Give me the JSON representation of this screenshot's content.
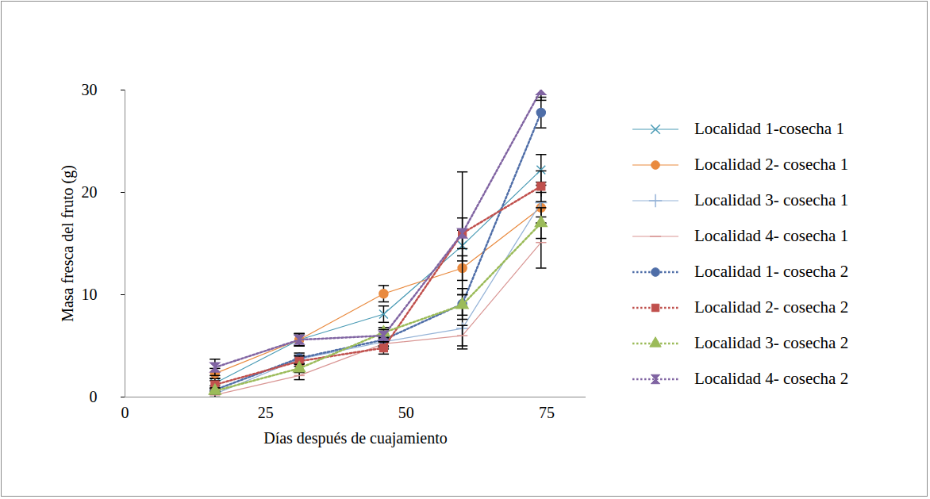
{
  "chart_data": {
    "type": "line",
    "x_label": "Días después de cuajamiento",
    "y_label": "Masa fresca del fruto (g)",
    "x": [
      16,
      31,
      46,
      60,
      74
    ],
    "xlim": [
      0,
      82
    ],
    "xticks": [
      0,
      25,
      50,
      75
    ],
    "ylim": [
      0,
      30
    ],
    "yticks": [
      0,
      10,
      20,
      30
    ],
    "grid": false,
    "legend": "right",
    "series": [
      {
        "name": "Localidad 1-cosecha 1",
        "color": "#4a9bb5",
        "marker": "times",
        "line_style": "solid",
        "values": [
          1.35,
          5.6,
          8.1,
          14.8,
          22.2
        ],
        "errors": [
          0.5,
          0.6,
          0.8,
          1.5,
          1.5
        ]
      },
      {
        "name": "Localidad 2- cosecha 1",
        "color": "#e98a3f",
        "marker": "circle",
        "line_style": "solid",
        "values": [
          2.3,
          5.6,
          10.1,
          12.6,
          18.5
        ],
        "errors": [
          0.5,
          0.6,
          0.8,
          1.2,
          1.5
        ]
      },
      {
        "name": "Localidad 3- cosecha 1",
        "color": "#95b3d7",
        "marker": "plus",
        "line_style": "solid",
        "values": [
          0.3,
          3.7,
          5.4,
          6.7,
          19.0
        ],
        "errors": [
          0.3,
          0.4,
          0.5,
          2.0,
          2.0
        ]
      },
      {
        "name": "Localidad 4- cosecha 1",
        "color": "#d99694",
        "marker": "dash",
        "line_style": "solid",
        "values": [
          0.2,
          2.1,
          5.2,
          6.0,
          15.1
        ],
        "errors": [
          0.3,
          0.4,
          0.5,
          1.0,
          2.5
        ]
      },
      {
        "name": "Localidad 1- cosecha 2",
        "color": "#4f6ea8",
        "marker": "circle",
        "line_style": "dotted",
        "values": [
          0.7,
          3.8,
          5.6,
          9.1,
          27.8
        ],
        "errors": [
          0.4,
          0.5,
          0.6,
          1.5,
          1.5
        ]
      },
      {
        "name": "Localidad 2- cosecha 2",
        "color": "#c0504d",
        "marker": "square",
        "line_style": "dotted",
        "values": [
          1.2,
          3.5,
          4.8,
          16.0,
          20.6
        ],
        "errors": [
          0.4,
          0.5,
          0.6,
          1.5,
          1.5
        ]
      },
      {
        "name": "Localidad 3- cosecha 2",
        "color": "#9bbb59",
        "marker": "triangle",
        "line_style": "dotted",
        "values": [
          0.6,
          2.8,
          6.3,
          9.0,
          17.0
        ],
        "errors": [
          0.3,
          0.4,
          0.5,
          1.0,
          1.5
        ]
      },
      {
        "name": "Localidad 4- cosecha 2",
        "color": "#8064a2",
        "marker": "hourglass",
        "line_style": "dotted",
        "values": [
          2.9,
          5.6,
          6.0,
          16.0,
          30.0
        ],
        "errors": [
          0.8,
          0.6,
          0.6,
          6.0,
          1.0
        ]
      }
    ]
  }
}
